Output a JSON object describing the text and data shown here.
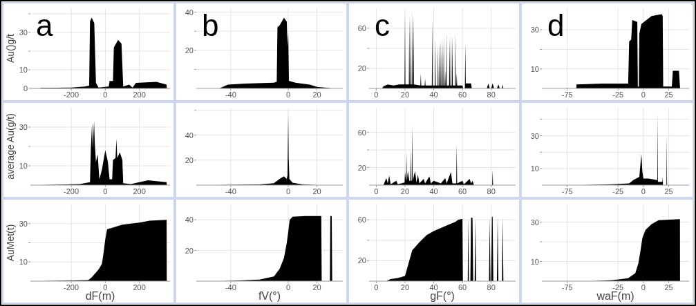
{
  "chart_data": [
    {
      "type": "area",
      "ylabel": "Au()g/t",
      "annotations": [
        "a"
      ],
      "color": "#000000",
      "grid": true,
      "xlim": [
        -440,
        380
      ],
      "ylim": [
        0,
        43
      ],
      "xticks": [
        -200,
        0,
        200
      ],
      "yticks": [
        0,
        10,
        {
          "value": 20,
          "label": null
        },
        30,
        {
          "value": 40,
          "label": null
        }
      ],
      "x": [
        -380,
        -200,
        -120,
        -95,
        -90,
        -80,
        -65,
        -55,
        -40,
        20,
        25,
        45,
        50,
        75,
        95,
        105,
        140,
        160,
        180,
        300,
        360,
        361
      ],
      "values": [
        0.3,
        0.5,
        1,
        1.5,
        36,
        38,
        35,
        3,
        0.5,
        1,
        4,
        4,
        22,
        26,
        24,
        1,
        2,
        0.5,
        3,
        3.5,
        2,
        0
      ]
    },
    {
      "type": "area",
      "annotations": [
        "b"
      ],
      "color": "#000000",
      "grid": true,
      "xlim": [
        -64,
        38
      ],
      "ylim": [
        0,
        42
      ],
      "xticks": [
        -40,
        0,
        20
      ],
      "yticks": [
        {
          "value": 10,
          "label": null
        },
        20,
        {
          "value": 30,
          "label": null
        },
        40
      ],
      "x": [
        -48,
        -45,
        -42,
        -30,
        -10,
        -8,
        -7.5,
        -6,
        -3,
        -1,
        -0.5,
        0,
        0.5,
        5,
        15,
        20,
        28,
        30
      ],
      "values": [
        0,
        1,
        2,
        2.5,
        3,
        3.5,
        32,
        33,
        37,
        35,
        22,
        29,
        4,
        3,
        2,
        0.8,
        0.3,
        0
      ]
    },
    {
      "type": "area",
      "annotations": [
        "c"
      ],
      "color": "#000000",
      "grid": true,
      "xlim": [
        -5,
        97
      ],
      "ylim": [
        0,
        80
      ],
      "xticks": [
        0,
        20,
        40,
        60,
        80
      ],
      "yticks": [
        20,
        {
          "value": 40,
          "label": null
        },
        60
      ],
      "x": [
        4,
        5,
        8,
        12,
        16,
        19.7,
        20,
        20.3,
        22.7,
        23,
        23.3,
        23.7,
        24,
        24.3,
        24.7,
        25,
        25.3,
        25.7,
        26,
        26.3,
        30.7,
        31,
        31.3,
        33.7,
        34,
        34.3,
        38.7,
        39,
        39.3,
        40.7,
        41,
        41.3,
        42.7,
        43,
        43.3,
        43.7,
        44,
        44.3,
        44.7,
        45,
        45.3,
        45.7,
        46,
        46.3,
        46.7,
        47,
        47.3,
        47.7,
        48,
        48.3,
        48.7,
        49,
        49.3,
        50.7,
        51,
        51.3,
        51.7,
        52,
        52.3,
        52.7,
        53,
        53.3,
        54.7,
        55,
        55.3,
        55.7,
        56,
        56.3,
        60,
        60.5,
        61.7,
        62,
        62.3,
        63,
        66,
        66.5,
        77,
        78,
        79,
        80,
        81,
        82,
        84,
        85,
        86,
        87.5,
        88,
        88.5
      ],
      "values": [
        0,
        2,
        4,
        3,
        4,
        4,
        76,
        4,
        4,
        72,
        4,
        4,
        72,
        4,
        4,
        77,
        4,
        4,
        73,
        4,
        3,
        15,
        3,
        3,
        10,
        3,
        3,
        70,
        3,
        3,
        50,
        3,
        3,
        43,
        3,
        3,
        45,
        3,
        3,
        48,
        3,
        3,
        50,
        3,
        3,
        52,
        3,
        3,
        18,
        3,
        3,
        56,
        3,
        3,
        51,
        3,
        3,
        53,
        3,
        3,
        53,
        3,
        3,
        55,
        3,
        3,
        15,
        3,
        3,
        0,
        0,
        45,
        5,
        5,
        5,
        0,
        0,
        5,
        0,
        0,
        5,
        0,
        0,
        4,
        0,
        0,
        4,
        0
      ]
    },
    {
      "type": "area",
      "annotations": [
        "d"
      ],
      "color": "#000000",
      "grid": true,
      "xlim": [
        -100,
        45
      ],
      "ylim": [
        0,
        41
      ],
      "xticks": [
        -75,
        -25,
        0,
        25
      ],
      "yticks": [
        10,
        {
          "value": 20,
          "label": null
        },
        30
      ],
      "x": [
        -66,
        -65.9,
        -40,
        -15,
        -14,
        -12,
        -11,
        -6,
        -5.5,
        -4.5,
        -4,
        -2,
        8,
        18,
        19,
        19.5,
        28,
        29,
        35,
        36,
        36.1
      ],
      "values": [
        0,
        2,
        2.5,
        2.5,
        24,
        25,
        35,
        34,
        1,
        1,
        28,
        33,
        37,
        38,
        37,
        1,
        1,
        9,
        9,
        1,
        0
      ]
    },
    {
      "type": "area",
      "ylabel": "average Au(g/t)",
      "color": "#000000",
      "grid": true,
      "xlim": [
        -440,
        380
      ],
      "ylim": [
        0,
        40
      ],
      "xticks": [
        -200,
        0,
        200
      ],
      "yticks": [
        10,
        {
          "value": 20,
          "label": null
        },
        30
      ],
      "x": [
        -380,
        -150,
        -90,
        -85,
        -78,
        -74,
        -66,
        -62,
        -55,
        -45,
        -35,
        -20,
        0,
        15,
        25,
        40,
        45,
        60,
        65,
        70,
        85,
        100,
        105,
        150,
        250,
        360,
        361
      ],
      "values": [
        0,
        0.5,
        1.5,
        19,
        32,
        19,
        33,
        22,
        12,
        16,
        3,
        8,
        18,
        12,
        3,
        3,
        13,
        14,
        24,
        14,
        17,
        13,
        1,
        0.5,
        2.5,
        1.5,
        0
      ]
    },
    {
      "type": "area",
      "color": "#000000",
      "grid": true,
      "xlim": [
        -64,
        38
      ],
      "ylim": [
        0,
        62
      ],
      "xticks": [
        -40,
        0,
        20
      ],
      "yticks": [
        20,
        40,
        {
          "value": 60,
          "label": null
        }
      ],
      "x": [
        -50,
        -20,
        -10,
        -6,
        -3,
        -1,
        -0.5,
        0,
        0.3,
        0.8,
        3,
        10,
        20
      ],
      "values": [
        0,
        0.5,
        1.5,
        5,
        7,
        5,
        8,
        57,
        22,
        5,
        2,
        0.5,
        0
      ]
    },
    {
      "type": "area",
      "color": "#000000",
      "grid": true,
      "xlim": [
        -5,
        97
      ],
      "ylim": [
        0,
        88
      ],
      "xticks": [
        0,
        20,
        40,
        60,
        80
      ],
      "yticks": [
        20,
        {
          "value": 40,
          "label": null
        },
        60
      ],
      "x": [
        5,
        7,
        8,
        9,
        10,
        14,
        15,
        19.7,
        20,
        20.7,
        21,
        21.3,
        22,
        23,
        23.7,
        24,
        24.3,
        24.7,
        25,
        25.3,
        27,
        28,
        29,
        30,
        33,
        34,
        37,
        38,
        40,
        45,
        48,
        49,
        52,
        53,
        55.7,
        56,
        56.3,
        60,
        61,
        65,
        66,
        67,
        68,
        80.7,
        81,
        81.3
      ],
      "values": [
        0,
        8,
        2,
        11,
        1,
        5,
        1,
        3,
        15,
        5,
        38,
        5,
        16,
        5,
        5,
        41,
        5,
        5,
        68,
        5,
        16,
        3,
        12,
        2,
        7,
        2,
        10,
        2,
        5,
        2,
        8,
        2,
        15,
        2,
        2,
        47,
        2,
        5,
        1,
        7,
        2,
        5,
        0,
        0,
        17,
        0
      ]
    },
    {
      "type": "area",
      "color": "#000000",
      "grid": true,
      "xlim": [
        -100,
        45
      ],
      "ylim": [
        0,
        47
      ],
      "xticks": [
        -75,
        -25,
        0,
        25
      ],
      "yticks": [
        10,
        {
          "value": 20,
          "label": null
        },
        30,
        {
          "value": 40,
          "label": null
        }
      ],
      "x": [
        -60,
        -30,
        -14,
        -10,
        -4,
        -2,
        -1,
        0,
        5,
        13.7,
        14,
        14.3,
        18.7,
        19,
        19.3,
        22.7,
        23,
        23.3,
        36
      ],
      "values": [
        0,
        0.5,
        1,
        3,
        5,
        19,
        8,
        4,
        4,
        3,
        44,
        2,
        2,
        5,
        0,
        0,
        31,
        0,
        0
      ]
    },
    {
      "type": "area",
      "xlabel": "dF(m)",
      "ylabel": "AuMet(t)",
      "color": "#000000",
      "grid": true,
      "xlim": [
        -440,
        380
      ],
      "ylim": [
        0,
        40
      ],
      "xticks": [
        -200,
        0,
        200
      ],
      "yticks": [
        10,
        {
          "value": 20,
          "label": null
        },
        30
      ],
      "x": [
        -380,
        -100,
        -80,
        -40,
        -20,
        -10,
        0,
        10,
        100,
        200,
        260,
        360,
        361
      ],
      "values": [
        0,
        0.5,
        2,
        6,
        9,
        15,
        22,
        27,
        29.5,
        30.5,
        31.5,
        32,
        0
      ]
    },
    {
      "type": "area",
      "xlabel": "fV(°)",
      "color": "#000000",
      "grid": true,
      "xlim": [
        -64,
        38
      ],
      "ylim": [
        0,
        50
      ],
      "xticks": [
        -40,
        0,
        20
      ],
      "yticks": [
        20,
        40
      ],
      "x": [
        -45,
        -20,
        -10,
        -6,
        -3,
        -1,
        0,
        1,
        3,
        12,
        23,
        23.3,
        29,
        29.3,
        30.3,
        30.6
      ],
      "values": [
        0,
        1,
        3,
        8,
        15,
        25,
        32,
        40,
        42,
        42.5,
        42.5,
        0,
        0,
        42.5,
        42.5,
        0
      ]
    },
    {
      "type": "area",
      "xlabel": "gF(°)",
      "color": "#000000",
      "grid": true,
      "xlim": [
        -5,
        97
      ],
      "ylim": [
        0,
        75
      ],
      "xticks": [
        0,
        20,
        40,
        60,
        80
      ],
      "yticks": [
        20,
        {
          "value": 40,
          "label": null
        },
        60
      ],
      "x": [
        7,
        10,
        15,
        20,
        22,
        25,
        30,
        35,
        40,
        45,
        50,
        55,
        57,
        60,
        60.3,
        63.7,
        64,
        64.5,
        65.5,
        66,
        67,
        67.5,
        68.5,
        69,
        69.5,
        78.5,
        79,
        79.5,
        80,
        80.5,
        81,
        81.5,
        84,
        84.5,
        85,
        87.5,
        88,
        88.5
      ],
      "values": [
        0,
        2,
        3,
        5,
        15,
        30,
        38,
        45,
        49,
        52,
        55,
        58,
        60,
        61,
        0,
        0,
        62,
        0,
        0,
        62,
        62,
        0,
        0,
        62,
        0,
        0,
        62,
        0,
        0,
        63,
        63,
        0,
        0,
        63,
        0,
        0,
        63,
        0
      ]
    },
    {
      "type": "area",
      "xlabel": "waF(m)",
      "color": "#000000",
      "grid": true,
      "xlim": [
        -100,
        45
      ],
      "ylim": [
        0,
        39
      ],
      "xticks": [
        -75,
        -25,
        0,
        25
      ],
      "yticks": [
        10,
        {
          "value": 20,
          "label": null
        },
        30
      ],
      "x": [
        -50,
        -30,
        -15,
        -8,
        -5,
        -3,
        -1,
        2,
        8,
        15,
        36,
        36.1
      ],
      "values": [
        0,
        0.5,
        1.5,
        4,
        9,
        15,
        22,
        26,
        29,
        31,
        31.5,
        0
      ]
    }
  ]
}
